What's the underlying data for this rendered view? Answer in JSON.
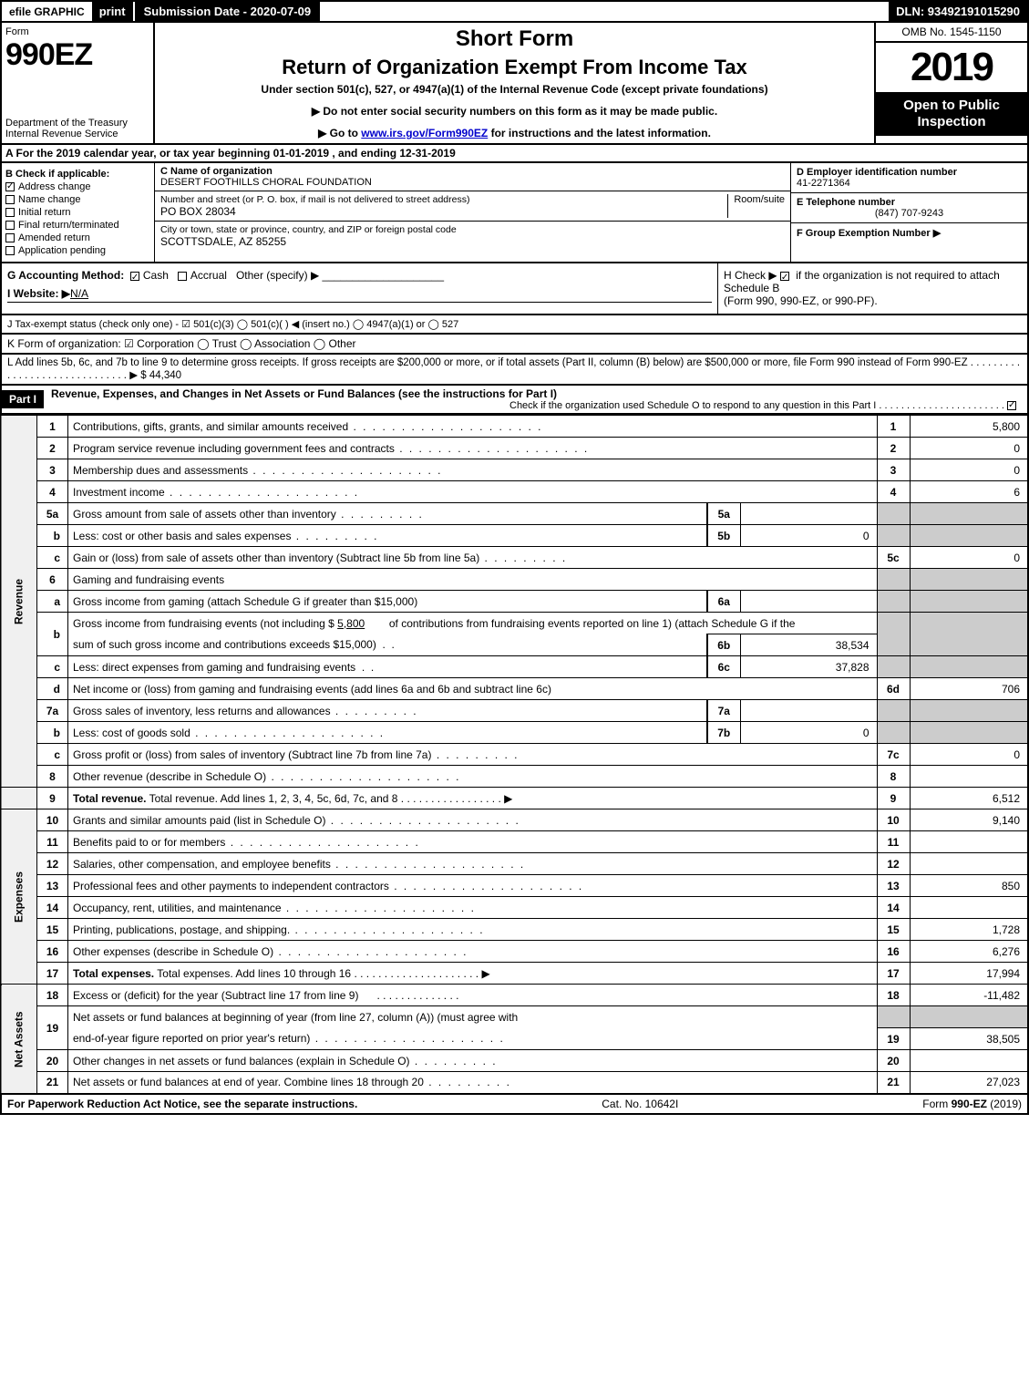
{
  "topbar": {
    "efile": "efile GRAPHIC",
    "print": "print",
    "submission_date_label": "Submission Date - 2020-07-09",
    "dln": "DLN: 93492191015290"
  },
  "header": {
    "form_label": "Form",
    "form_number": "990EZ",
    "dept1": "Department of the Treasury",
    "dept2": "Internal Revenue Service",
    "short_form": "Short Form",
    "title": "Return of Organization Exempt From Income Tax",
    "under_section": "Under section 501(c), 527, or 4947(a)(1) of the Internal Revenue Code (except private foundations)",
    "ssn_note": "▶ Do not enter social security numbers on this form as it may be made public.",
    "goto_pre": "▶ Go to ",
    "goto_link": "www.irs.gov/Form990EZ",
    "goto_post": " for instructions and the latest information.",
    "omb": "OMB No. 1545-1150",
    "year": "2019",
    "open_public": "Open to Public Inspection"
  },
  "row_a": "A For the 2019 calendar year, or tax year beginning 01-01-2019 , and ending 12-31-2019",
  "section_b": {
    "label": "B  Check if applicable:",
    "address_change": "Address change",
    "name_change": "Name change",
    "initial_return": "Initial return",
    "final_return": "Final return/terminated",
    "amended_return": "Amended return",
    "application_pending": "Application pending"
  },
  "section_c": {
    "label": "C Name of organization",
    "org_name": "DESERT FOOTHILLS CHORAL FOUNDATION",
    "addr_label": "Number and street (or P. O. box, if mail is not delivered to street address)",
    "addr": "PO BOX 28034",
    "room_label": "Room/suite",
    "city_label": "City or town, state or province, country, and ZIP or foreign postal code",
    "city": "SCOTTSDALE, AZ  85255"
  },
  "section_d": {
    "label": "D Employer identification number",
    "ein": "41-2271364",
    "phone_label": "E Telephone number",
    "phone": "(847) 707-9243",
    "group_label": "F Group Exemption Number  ▶"
  },
  "section_g": {
    "label": "G Accounting Method:",
    "cash": "Cash",
    "accrual": "Accrual",
    "other": "Other (specify) ▶"
  },
  "section_h": {
    "text1": "H  Check ▶",
    "text2": "if the organization is not required to attach Schedule B",
    "text3": "(Form 990, 990-EZ, or 990-PF)."
  },
  "section_i": {
    "label": "I Website: ▶",
    "value": "N/A"
  },
  "section_j": "J Tax-exempt status (check only one) - ☑ 501(c)(3)  ◯ 501(c)(  ) ◀ (insert no.)  ◯ 4947(a)(1) or  ◯ 527",
  "section_k": "K Form of organization:   ☑ Corporation   ◯ Trust   ◯ Association   ◯ Other",
  "section_l": {
    "text": "L Add lines 5b, 6c, and 7b to line 9 to determine gross receipts. If gross receipts are $200,000 or more, or if total assets (Part II, column (B) below) are $500,000 or more, file Form 990 instead of Form 990-EZ  .  .  .  .  .  .  .  .  .  .  .  .  .  .  .  .  .  .  .  .  .  .  .  .  .  .  .  .  .  .  ▶ $",
    "value": "44,340"
  },
  "part1": {
    "label": "Part I",
    "title": "Revenue, Expenses, and Changes in Net Assets or Fund Balances (see the instructions for Part I)",
    "check_note": "Check if the organization used Schedule O to respond to any question in this Part I  .  .  .  .  .  .  .  .  .  .  .  .  .  .  .  .  .  .  .  .  .  .  ."
  },
  "vert": {
    "revenue": "Revenue",
    "expenses": "Expenses",
    "netassets": "Net Assets"
  },
  "lines": {
    "l1": {
      "n": "1",
      "d": "Contributions, gifts, grants, and similar amounts received",
      "v": "5,800"
    },
    "l2": {
      "n": "2",
      "d": "Program service revenue including government fees and contracts",
      "v": "0"
    },
    "l3": {
      "n": "3",
      "d": "Membership dues and assessments",
      "v": "0"
    },
    "l4": {
      "n": "4",
      "d": "Investment income",
      "v": "6"
    },
    "l5a": {
      "n": "5a",
      "d": "Gross amount from sale of assets other than inventory",
      "box": "5a",
      "bv": ""
    },
    "l5b": {
      "n": "b",
      "d": "Less: cost or other basis and sales expenses",
      "box": "5b",
      "bv": "0"
    },
    "l5c": {
      "n": "c",
      "d": "Gain or (loss) from sale of assets other than inventory (Subtract line 5b from line 5a)",
      "nc": "5c",
      "v": "0"
    },
    "l6": {
      "n": "6",
      "d": "Gaming and fundraising events"
    },
    "l6a": {
      "n": "a",
      "d": "Gross income from gaming (attach Schedule G if greater than $15,000)",
      "box": "6a",
      "bv": ""
    },
    "l6b": {
      "n": "b",
      "d1": "Gross income from fundraising events (not including $",
      "d1amt": "5,800",
      "d1post": "of contributions from fundraising events reported on line 1) (attach Schedule G if the",
      "d2": "sum of such gross income and contributions exceeds $15,000)",
      "box": "6b",
      "bv": "38,534"
    },
    "l6c": {
      "n": "c",
      "d": "Less: direct expenses from gaming and fundraising events",
      "box": "6c",
      "bv": "37,828"
    },
    "l6d": {
      "n": "d",
      "d": "Net income or (loss) from gaming and fundraising events (add lines 6a and 6b and subtract line 6c)",
      "nc": "6d",
      "v": "706"
    },
    "l7a": {
      "n": "7a",
      "d": "Gross sales of inventory, less returns and allowances",
      "box": "7a",
      "bv": ""
    },
    "l7b": {
      "n": "b",
      "d": "Less: cost of goods sold",
      "box": "7b",
      "bv": "0"
    },
    "l7c": {
      "n": "c",
      "d": "Gross profit or (loss) from sales of inventory (Subtract line 7b from line 7a)",
      "nc": "7c",
      "v": "0"
    },
    "l8": {
      "n": "8",
      "d": "Other revenue (describe in Schedule O)",
      "v": ""
    },
    "l9": {
      "n": "9",
      "d": "Total revenue. Add lines 1, 2, 3, 4, 5c, 6d, 7c, and 8",
      "v": "6,512"
    },
    "l10": {
      "n": "10",
      "d": "Grants and similar amounts paid (list in Schedule O)",
      "v": "9,140"
    },
    "l11": {
      "n": "11",
      "d": "Benefits paid to or for members",
      "v": ""
    },
    "l12": {
      "n": "12",
      "d": "Salaries, other compensation, and employee benefits",
      "v": ""
    },
    "l13": {
      "n": "13",
      "d": "Professional fees and other payments to independent contractors",
      "v": "850"
    },
    "l14": {
      "n": "14",
      "d": "Occupancy, rent, utilities, and maintenance",
      "v": ""
    },
    "l15": {
      "n": "15",
      "d": "Printing, publications, postage, and shipping.",
      "v": "1,728"
    },
    "l16": {
      "n": "16",
      "d": "Other expenses (describe in Schedule O)",
      "v": "6,276"
    },
    "l17": {
      "n": "17",
      "d": "Total expenses. Add lines 10 through 16",
      "v": "17,994"
    },
    "l18": {
      "n": "18",
      "d": "Excess or (deficit) for the year (Subtract line 17 from line 9)",
      "v": "-11,482"
    },
    "l19": {
      "n": "19",
      "d1": "Net assets or fund balances at beginning of year (from line 27, column (A)) (must agree with",
      "d2": "end-of-year figure reported on prior year's return)",
      "v": "38,505"
    },
    "l20": {
      "n": "20",
      "d": "Other changes in net assets or fund balances (explain in Schedule O)",
      "v": ""
    },
    "l21": {
      "n": "21",
      "d": "Net assets or fund balances at end of year. Combine lines 18 through 20",
      "v": "27,023"
    }
  },
  "footer": {
    "left": "For Paperwork Reduction Act Notice, see the separate instructions.",
    "mid": "Cat. No. 10642I",
    "right_pre": "Form ",
    "right_form": "990-EZ",
    "right_post": " (2019)"
  },
  "colors": {
    "black": "#000000",
    "white": "#ffffff",
    "shaded": "#cccccc",
    "link": "#0000cc"
  }
}
